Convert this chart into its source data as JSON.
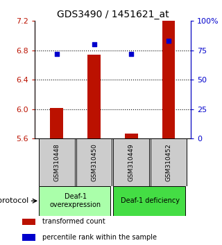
{
  "title": "GDS3490 / 1451621_at",
  "samples": [
    "GSM310448",
    "GSM310450",
    "GSM310449",
    "GSM310452"
  ],
  "bar_values": [
    6.01,
    6.74,
    5.67,
    7.2
  ],
  "bar_bottom": 5.6,
  "percentile_values": [
    72,
    80,
    72,
    83
  ],
  "ylim_left": [
    5.6,
    7.2
  ],
  "ylim_right": [
    0,
    100
  ],
  "yticks_left": [
    5.6,
    6.0,
    6.4,
    6.8,
    7.2
  ],
  "yticks_right": [
    0,
    25,
    50,
    75,
    100
  ],
  "ytick_labels_right": [
    "0",
    "25",
    "50",
    "75",
    "100%"
  ],
  "grid_values": [
    6.0,
    6.4,
    6.8
  ],
  "bar_color": "#bb1100",
  "dot_color": "#0000cc",
  "group1_label": "Deaf-1\noverexpression",
  "group2_label": "Deaf-1 deficiency",
  "group1_color": "#aaffaa",
  "group2_color": "#44dd44",
  "sample_bg_color": "#cccccc",
  "legend_bar_label": "transformed count",
  "legend_dot_label": "percentile rank within the sample",
  "protocol_label": "protocol",
  "title_fontsize": 10,
  "tick_fontsize": 8,
  "bar_width": 0.35
}
